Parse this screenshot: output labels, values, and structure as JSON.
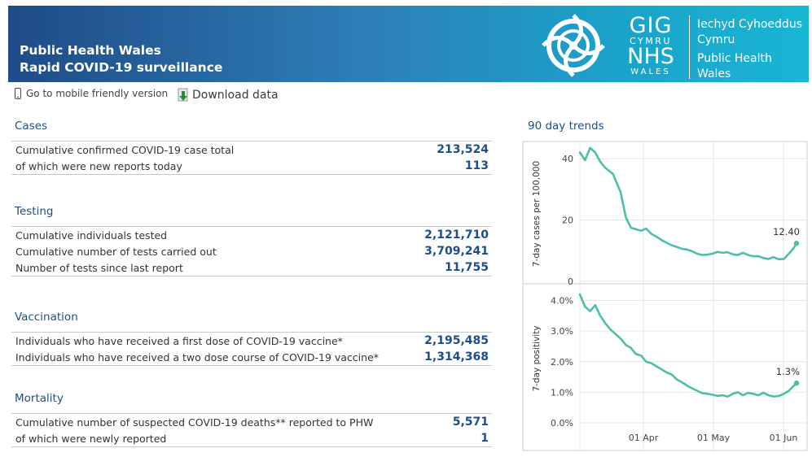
{
  "header": {
    "title_line1": "Public Health Wales",
    "title_line2": "Rapid COVID-19 surveillance",
    "gig": "GIG",
    "cymru": "CYMRU",
    "nhs": "NHS",
    "wales": "WALES",
    "org_cy_1": "Iechyd Cyhoeddus",
    "org_cy_2": "Cymru",
    "org_en_1": "Public Health",
    "org_en_2": "Wales",
    "background_colors": [
      "#1f4b86",
      "#19b6d4"
    ]
  },
  "toolbar": {
    "mobile_label": "Go to mobile friendly version",
    "mobile_icon": "phone-icon",
    "download_label": "Download data",
    "download_icon": "download-icon"
  },
  "sections": {
    "cases": {
      "title": "Cases",
      "rows": [
        {
          "label": "Cumulative confirmed COVID-19 case total",
          "value": "213,524"
        },
        {
          "label": "of which were new reports today",
          "value": "113"
        }
      ]
    },
    "testing": {
      "title": "Testing",
      "rows": [
        {
          "label": "Cumulative individuals tested",
          "value": "2,121,710"
        },
        {
          "label": "Cumulative number of tests carried out",
          "value": "3,709,241"
        },
        {
          "label": "Number of tests since last report",
          "value": "11,755"
        }
      ]
    },
    "vaccination": {
      "title": "Vaccination",
      "rows": [
        {
          "label": "Individuals who have received a first dose of COVID-19 vaccine*",
          "value": "2,195,485"
        },
        {
          "label": "Individuals who have received a two dose course of COVID-19 vaccine*",
          "value": "1,314,368"
        }
      ]
    },
    "mortality": {
      "title": "Mortality",
      "rows": [
        {
          "label": "Cumulative number of suspected COVID-19 deaths** reported to PHW",
          "value": "5,571"
        },
        {
          "label": "of which were newly reported",
          "value": "1"
        }
      ]
    }
  },
  "trends": {
    "title": "90 day trends",
    "accent_color": "#4dbfa8"
  },
  "chart_data": [
    {
      "type": "line",
      "title": "",
      "xlabel": "",
      "ylabel": "7-day cases per 100,000",
      "x_tick_labels": [
        "01 Apr",
        "01 May",
        "01 Jun"
      ],
      "y_ticks": [
        0,
        20,
        40
      ],
      "y_tick_labels": [
        "0",
        "20",
        "40"
      ],
      "ylim": [
        0,
        44
      ],
      "end_label": "12.40",
      "series": [
        {
          "x": [
            0,
            2,
            4,
            6,
            8,
            10,
            13,
            16,
            18,
            20,
            22,
            24,
            26,
            28,
            30,
            32,
            34,
            36,
            38,
            40,
            42,
            44,
            46,
            48,
            50,
            52,
            54,
            56,
            58,
            60,
            62,
            64,
            66,
            68,
            70,
            72,
            74,
            76,
            78,
            80,
            82,
            84,
            85
          ],
          "values": [
            42,
            39.5,
            43.5,
            42,
            39,
            37,
            35,
            29,
            21,
            17.5,
            17,
            16.5,
            17.2,
            15.5,
            14.6,
            13.5,
            12.6,
            11.8,
            11.2,
            10.6,
            10.4,
            9.8,
            9.0,
            8.6,
            8.7,
            9.0,
            9.6,
            9.3,
            9.5,
            8.8,
            8.6,
            9.3,
            8.6,
            8.2,
            8.2,
            7.6,
            7.3,
            7.9,
            7.2,
            7.3,
            9.0,
            11.0,
            12.4
          ]
        }
      ]
    },
    {
      "type": "line",
      "title": "",
      "xlabel": "",
      "ylabel": "7-day positivity",
      "x_tick_labels": [
        "01 Apr",
        "01 May",
        "01 Jun"
      ],
      "y_ticks": [
        0,
        1,
        2,
        3,
        4
      ],
      "y_tick_labels": [
        "0.0%",
        "1.0%",
        "2.0%",
        "3.0%",
        "4.0%"
      ],
      "ylim": [
        0,
        4.2
      ],
      "end_label": "1.3%",
      "series": [
        {
          "x": [
            0,
            2,
            4,
            6,
            8,
            10,
            12,
            14,
            16,
            18,
            20,
            22,
            24,
            26,
            28,
            30,
            32,
            34,
            36,
            38,
            40,
            42,
            44,
            46,
            48,
            50,
            52,
            54,
            56,
            58,
            60,
            62,
            64,
            66,
            68,
            70,
            72,
            74,
            76,
            78,
            80,
            82,
            84,
            85
          ],
          "values": [
            4.2,
            3.8,
            3.65,
            3.85,
            3.5,
            3.25,
            3.05,
            2.9,
            2.75,
            2.55,
            2.45,
            2.25,
            2.2,
            2.0,
            1.95,
            1.85,
            1.75,
            1.65,
            1.58,
            1.42,
            1.33,
            1.22,
            1.13,
            1.05,
            0.97,
            0.95,
            0.92,
            0.88,
            0.9,
            0.86,
            0.95,
            1.0,
            0.9,
            0.98,
            0.95,
            0.9,
            0.98,
            0.9,
            0.86,
            0.88,
            0.95,
            1.05,
            1.22,
            1.3
          ]
        }
      ]
    }
  ]
}
